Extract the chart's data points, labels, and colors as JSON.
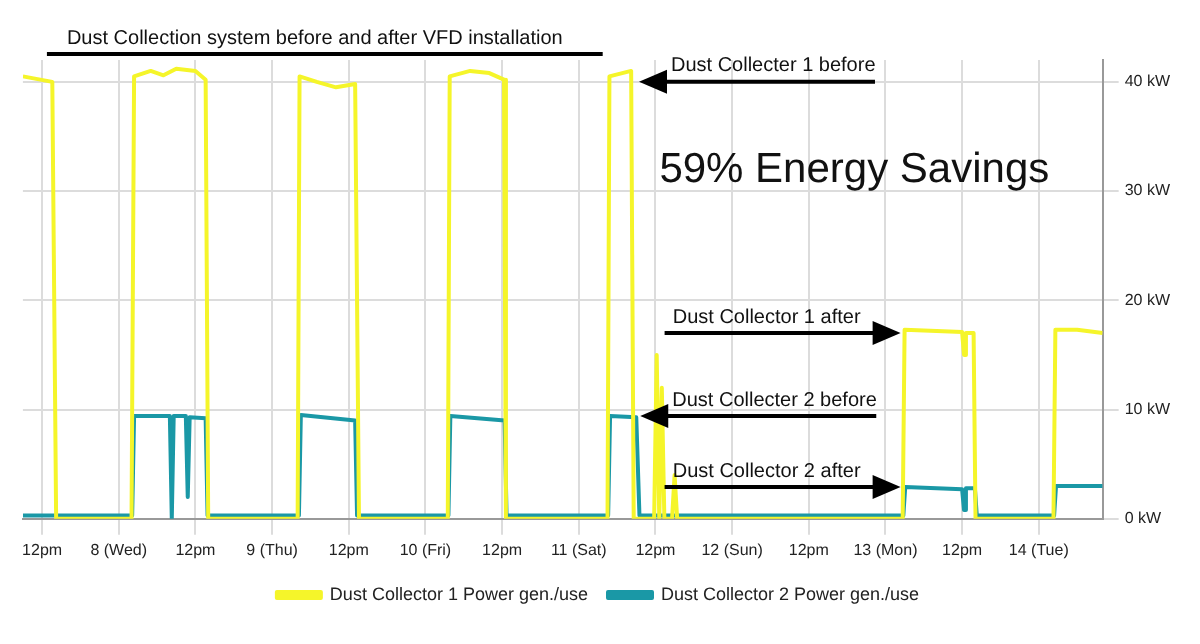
{
  "chart_data": {
    "type": "line",
    "title": "Dust Collection system before and after VFD installation",
    "xlim": [
      "--08-07T09:00",
      "--08-14T10:00"
    ],
    "xticks": [
      {
        "value": "--08-07T12:00",
        "label": "12pm"
      },
      {
        "value": "--08-08",
        "label": "8 (Wed)"
      },
      {
        "value": "--08-08T12:00",
        "label": "12pm"
      },
      {
        "value": "--08-09",
        "label": "9 (Thu)"
      },
      {
        "value": "--08-09T12:00",
        "label": "12pm"
      },
      {
        "value": "--08-10",
        "label": "10 (Fri)"
      },
      {
        "value": "--08-10T12:00",
        "label": "12pm"
      },
      {
        "value": "--08-11",
        "label": "11 (Sat)"
      },
      {
        "value": "--08-11T12:00",
        "label": "12pm"
      },
      {
        "value": "--08-12",
        "label": "12 (Sun)"
      },
      {
        "value": "--08-12T12:00",
        "label": "12pm"
      },
      {
        "value": "--08-13",
        "label": "13 (Mon)"
      },
      {
        "value": "--08-13T12:00",
        "label": "12pm"
      },
      {
        "value": "--08-14",
        "label": "14 (Tue)"
      }
    ],
    "ylim": [
      0,
      42
    ],
    "yticks": [
      {
        "value": 0,
        "label": "0 kW"
      },
      {
        "value": 10,
        "label": "10 kW"
      },
      {
        "value": 20,
        "label": "20 kW"
      },
      {
        "value": 30,
        "label": "30 kW"
      },
      {
        "value": 40,
        "label": "40 kW"
      }
    ],
    "grid": true,
    "legend": "bottom",
    "marker": "none",
    "series": [
      {
        "name": "Dust Collector 1 Power gen./use",
        "color": "#f5f52a",
        "x": [
          "--08-07T09:00",
          "--08-07T13:36",
          "--08-07T14:12",
          "--08-08T02:00",
          "--08-08T02:24",
          "--08-08T05:00",
          "--08-08T07:00",
          "--08-08T09:00",
          "--08-08T12:00",
          "--08-08T13:36",
          "--08-08T14:00",
          "--08-09T04:00",
          "--08-09T04:18",
          "--08-09T07:00",
          "--08-09T10:00",
          "--08-09T13:00",
          "--08-09T13:36",
          "--08-10T03:30",
          "--08-10T03:48",
          "--08-10T07:00",
          "--08-10T10:00",
          "--08-10T12:18",
          "--08-10T12:36",
          "--08-11T04:30",
          "--08-11T04:48",
          "--08-11T08:12",
          "--08-11T08:36",
          "--08-11T11:48",
          "--08-11T12:12",
          "--08-11T12:36",
          "--08-11T13:00",
          "--08-11T13:24",
          "--08-11T14:36",
          "--08-11T15:00",
          "--08-11T15:24",
          "--08-13T02:42",
          "--08-13T03:00",
          "--08-13T08:00",
          "--08-13T12:00",
          "--08-13T12:18",
          "--08-13T12:36",
          "--08-13T13:48",
          "--08-13T14:06",
          "--08-14T02:18",
          "--08-14T02:36",
          "--08-14T06:00",
          "--08-14T10:00"
        ],
        "values": [
          40.5,
          40,
          0,
          0,
          40.5,
          41,
          40.6,
          41.2,
          41,
          40.2,
          0,
          0,
          40.5,
          40,
          39.5,
          39.8,
          0,
          0,
          40.5,
          41,
          40.8,
          40.2,
          0,
          0,
          40.5,
          41,
          0,
          0,
          15,
          0,
          12,
          0,
          0,
          4,
          0,
          0,
          17.3,
          17.2,
          17.1,
          15,
          17,
          17,
          0,
          0,
          17.3,
          17.3,
          17
        ]
      },
      {
        "name": "Dust Collector 2 Power gen./use",
        "color": "#1a98a6",
        "x": [
          "--08-07T09:00",
          "--08-08T02:06",
          "--08-08T02:24",
          "--08-08T08:00",
          "--08-08T08:18",
          "--08-08T08:36",
          "--08-08T10:30",
          "--08-08T10:48",
          "--08-08T11:06",
          "--08-08T13:36",
          "--08-08T13:54",
          "--08-09T04:12",
          "--08-09T04:30",
          "--08-09T13:00",
          "--08-09T13:18",
          "--08-10T03:36",
          "--08-10T03:54",
          "--08-10T12:24",
          "--08-10T12:42",
          "--08-11T04:36",
          "--08-11T04:54",
          "--08-11T09:00",
          "--08-11T09:30",
          "--08-13T02:48",
          "--08-13T03:06",
          "--08-13T12:00",
          "--08-13T12:18",
          "--08-13T12:36",
          "--08-13T14:00",
          "--08-13T14:18",
          "--08-14T02:24",
          "--08-14T02:42",
          "--08-14T10:00"
        ],
        "values": [
          0.3,
          0.3,
          9.4,
          9.4,
          0,
          9.4,
          9.4,
          2,
          9.3,
          9.2,
          0.3,
          0.3,
          9.5,
          9,
          0.3,
          0.3,
          9.4,
          9,
          0.3,
          0.3,
          9.4,
          9.3,
          0.3,
          0.3,
          2.9,
          2.7,
          0.8,
          2.8,
          2.8,
          0.3,
          0.3,
          3,
          3
        ]
      }
    ],
    "annotations": [
      "59% Energy Savings",
      {
        "text": "Dust Collecter 1 before",
        "x": "--08-11T08:48",
        "y": 40
      },
      {
        "text": "Dust Collector 1 after",
        "x": "--08-13T03:00",
        "y": 17
      },
      {
        "text": "Dust Collecter 2 before",
        "x": "--08-11T09:00",
        "y": 9.4
      },
      {
        "text": "Dust Collector 2 after",
        "x": "--08-13T03:00",
        "y": 2.9
      }
    ]
  }
}
